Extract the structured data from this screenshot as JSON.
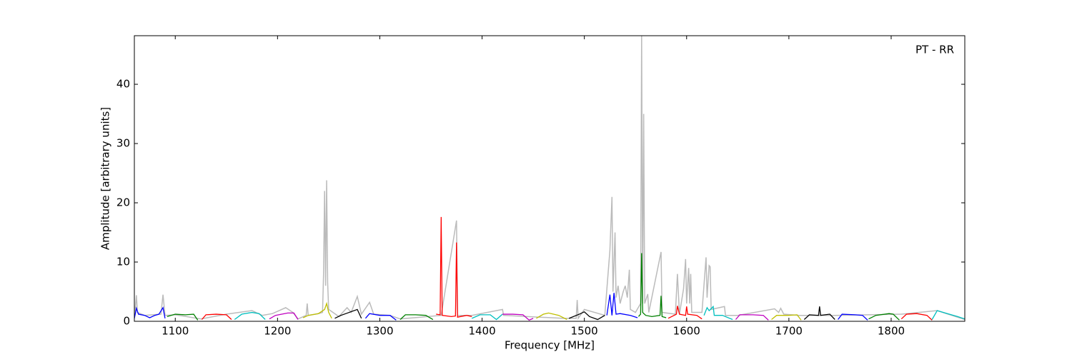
{
  "chart_data": {
    "type": "line",
    "xlabel": "Frequency [MHz]",
    "ylabel": "Amplitude [arbitrary units]",
    "annotation": "PT - RR",
    "xlim": [
      1060,
      1872
    ],
    "ylim": [
      0,
      48.2
    ],
    "xticks": [
      1100,
      1200,
      1300,
      1400,
      1500,
      1600,
      1700,
      1800
    ],
    "yticks": [
      0,
      10,
      20,
      30,
      40
    ],
    "series": [
      {
        "color": "#bbbbbb",
        "x": [
          1060,
          1062,
          1063,
          1070,
          1086,
          1088,
          1090,
          1100,
          1125,
          1150,
          1175,
          1185,
          1195,
          1208,
          1215,
          1220,
          1228,
          1229,
          1230,
          1240,
          1244,
          1245,
          1246,
          1247,
          1248,
          1249,
          1250,
          1260,
          1268,
          1272,
          1278,
          1282,
          1290,
          1294,
          1310,
          1320,
          1360,
          1375,
          1376,
          1390,
          1420,
          1421,
          1480,
          1492,
          1493,
          1494,
          1500,
          1520,
          1525,
          1527,
          1528,
          1530,
          1531,
          1533,
          1535,
          1538,
          1540,
          1542,
          1544,
          1545,
          1550,
          1555,
          1556,
          1557,
          1558,
          1559,
          1562,
          1563,
          1575,
          1576,
          1589,
          1591,
          1593,
          1597,
          1599,
          1600,
          1602,
          1603,
          1604,
          1605,
          1615,
          1619,
          1620,
          1622,
          1623,
          1624,
          1637,
          1638,
          1650,
          1686,
          1690,
          1692,
          1695,
          1710,
          1745,
          1810,
          1845,
          1872
        ],
        "values": [
          0.5,
          4.4,
          1.5,
          1.0,
          1.2,
          4.5,
          1.0,
          1.1,
          0.4,
          1.2,
          1.8,
          1.0,
          1.3,
          2.3,
          1.5,
          0.4,
          1.0,
          3.0,
          1.0,
          1.3,
          1.5,
          8.0,
          22.0,
          6.0,
          23.8,
          6.5,
          2.0,
          0.8,
          2.3,
          1.5,
          4.2,
          1.2,
          3.2,
          1.2,
          1.0,
          0.4,
          1.0,
          17.0,
          1.0,
          1.0,
          2.0,
          1.0,
          0.5,
          0.5,
          3.6,
          0.5,
          2.0,
          1.0,
          12.0,
          21.0,
          5.0,
          15.0,
          4.0,
          6.0,
          3.0,
          5.0,
          6.0,
          4.0,
          8.7,
          2.0,
          1.5,
          3.0,
          48.2,
          3.0,
          35.0,
          3.0,
          4.6,
          1.5,
          11.7,
          1.5,
          1.2,
          8.0,
          1.2,
          5.5,
          10.5,
          3.0,
          9.0,
          3.0,
          8.0,
          1.5,
          1.5,
          10.8,
          4.0,
          9.4,
          9.2,
          2.0,
          2.5,
          1.0,
          1.0,
          2.1,
          1.5,
          2.2,
          1.2,
          1.0,
          1.0,
          1.2,
          1.8,
          0.3
        ]
      },
      {
        "color": "#0000ff",
        "x": [
          1060,
          1062,
          1064,
          1070,
          1075,
          1080,
          1084,
          1088,
          1090
        ],
        "values": [
          0.5,
          2.2,
          1.2,
          1.0,
          0.6,
          1.0,
          1.2,
          2.3,
          0.5
        ]
      },
      {
        "color": "#008000",
        "x": [
          1092,
          1100,
          1110,
          1118,
          1122
        ],
        "values": [
          0.8,
          1.2,
          1.1,
          1.2,
          0.2
        ]
      },
      {
        "color": "#ff0000",
        "x": [
          1126,
          1130,
          1140,
          1150,
          1155
        ],
        "values": [
          0.3,
          1.1,
          1.2,
          1.1,
          0.3
        ]
      },
      {
        "color": "#00bfbf",
        "x": [
          1158,
          1165,
          1175,
          1182,
          1188
        ],
        "values": [
          0.3,
          1.2,
          1.5,
          1.3,
          0.3
        ]
      },
      {
        "color": "#bf00bf",
        "x": [
          1192,
          1198,
          1210,
          1216,
          1220
        ],
        "values": [
          0.4,
          1.0,
          1.4,
          1.4,
          0.3
        ]
      },
      {
        "color": "#bfbf00",
        "x": [
          1225,
          1230,
          1240,
          1246,
          1248,
          1250,
          1253
        ],
        "values": [
          0.6,
          1.0,
          1.3,
          2.0,
          3.0,
          1.5,
          0.5
        ]
      },
      {
        "color": "#000000",
        "x": [
          1256,
          1262,
          1270,
          1278,
          1282
        ],
        "values": [
          0.5,
          1.0,
          1.5,
          2.0,
          0.5
        ]
      },
      {
        "color": "#0000ff",
        "x": [
          1286,
          1290,
          1300,
          1310,
          1316
        ],
        "values": [
          0.5,
          1.3,
          1.0,
          1.0,
          0.2
        ]
      },
      {
        "color": "#008000",
        "x": [
          1320,
          1325,
          1335,
          1345,
          1352
        ],
        "values": [
          0.3,
          1.1,
          1.1,
          1.0,
          0.3
        ]
      },
      {
        "color": "#ff0000",
        "x": [
          1355,
          1359,
          1360,
          1361,
          1370,
          1374,
          1375,
          1376,
          1385,
          1390
        ],
        "values": [
          1.2,
          1.1,
          17.6,
          1.0,
          0.8,
          0.9,
          13.3,
          0.7,
          1.0,
          0.8
        ]
      },
      {
        "color": "#00bfbf",
        "x": [
          1390,
          1398,
          1408,
          1414,
          1420
        ],
        "values": [
          0.5,
          1.1,
          1.1,
          0.3,
          1.2
        ]
      },
      {
        "color": "#bf00bf",
        "x": [
          1420,
          1430,
          1440,
          1446,
          1450
        ],
        "values": [
          1.2,
          1.2,
          1.1,
          0.2,
          0.5
        ]
      },
      {
        "color": "#bfbf00",
        "x": [
          1453,
          1460,
          1465,
          1475,
          1483
        ],
        "values": [
          0.5,
          1.2,
          1.4,
          1.0,
          0.3
        ]
      },
      {
        "color": "#000000",
        "x": [
          1485,
          1495,
          1500,
          1505,
          1513,
          1520
        ],
        "values": [
          0.5,
          1.2,
          1.6,
          0.8,
          0.3,
          1.0
        ]
      },
      {
        "color": "#0000ff",
        "x": [
          1522,
          1525,
          1527,
          1529,
          1531,
          1535,
          1545,
          1552
        ],
        "values": [
          1.0,
          4.5,
          1.0,
          4.8,
          1.2,
          1.3,
          1.0,
          0.6
        ]
      },
      {
        "color": "#008000",
        "x": [
          1553,
          1555,
          1556,
          1557,
          1560,
          1566,
          1574,
          1575,
          1576,
          1580
        ],
        "values": [
          0.8,
          1.2,
          11.5,
          1.5,
          1.0,
          0.8,
          1.0,
          4.3,
          0.8,
          0.6
        ]
      },
      {
        "color": "#ff0000",
        "x": [
          1582,
          1590,
          1591,
          1593,
          1599,
          1600,
          1601,
          1610,
          1615
        ],
        "values": [
          0.5,
          1.2,
          2.6,
          1.2,
          1.0,
          2.5,
          1.2,
          1.0,
          0.4
        ]
      },
      {
        "color": "#00bfbf",
        "x": [
          1617,
          1620,
          1622,
          1626,
          1627,
          1635,
          1645
        ],
        "values": [
          1.0,
          2.3,
          1.8,
          2.5,
          1.0,
          1.0,
          0.3
        ]
      },
      {
        "color": "#bf00bf",
        "x": [
          1648,
          1652,
          1665,
          1675,
          1680
        ],
        "values": [
          0.3,
          1.1,
          1.1,
          1.0,
          0.2
        ]
      },
      {
        "color": "#bfbf00",
        "x": [
          1683,
          1688,
          1700,
          1708,
          1712
        ],
        "values": [
          0.3,
          1.0,
          1.0,
          1.1,
          0.2
        ]
      },
      {
        "color": "#000000",
        "x": [
          1715,
          1720,
          1729,
          1730,
          1731,
          1740,
          1745
        ],
        "values": [
          0.3,
          1.1,
          1.0,
          2.5,
          1.0,
          1.2,
          0.3
        ]
      },
      {
        "color": "#0000ff",
        "x": [
          1748,
          1752,
          1765,
          1772,
          1777
        ],
        "values": [
          0.3,
          1.2,
          1.1,
          1.0,
          0.2
        ]
      },
      {
        "color": "#008000",
        "x": [
          1778,
          1785,
          1798,
          1802,
          1808
        ],
        "values": [
          0.4,
          1.0,
          1.3,
          1.2,
          0.2
        ]
      },
      {
        "color": "#ff0000",
        "x": [
          1810,
          1815,
          1825,
          1835,
          1840
        ],
        "values": [
          0.4,
          1.2,
          1.3,
          1.0,
          0.2
        ]
      },
      {
        "color": "#00bfbf",
        "x": [
          1840,
          1845,
          1855,
          1865,
          1872
        ],
        "values": [
          0.3,
          1.8,
          1.3,
          0.8,
          0.4
        ]
      }
    ]
  }
}
